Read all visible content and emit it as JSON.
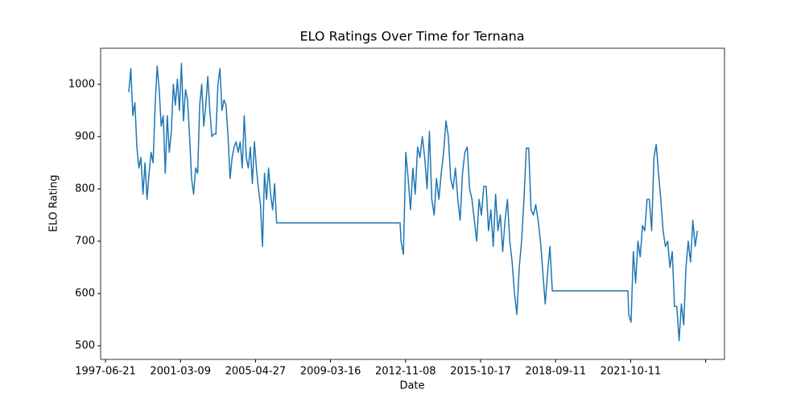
{
  "chart_data": {
    "type": "line",
    "title": "ELO Ratings Over Time for Ternana",
    "xlabel": "Date",
    "ylabel": "ELO Rating",
    "color": "#1f77b4",
    "x": [
      622,
      676,
      730,
      784,
      838,
      892,
      946,
      1000,
      1054,
      1108,
      1162,
      1216,
      1270,
      1324,
      1378,
      1432,
      1486,
      1540,
      1594,
      1648,
      1702,
      1756,
      1810,
      1864,
      1918,
      1972,
      2026,
      2080,
      2134,
      2188,
      2242,
      2296,
      2350,
      2404,
      2458,
      2512,
      2566,
      2620,
      2674,
      2728,
      2782,
      2836,
      2890,
      2944,
      2998,
      3052,
      3106,
      3160,
      3214,
      3268,
      3322,
      3376,
      3430,
      3484,
      3538,
      3592,
      3646,
      3700,
      3754,
      3808,
      3862,
      3916,
      3970,
      4024,
      4078,
      4132,
      4186,
      4240,
      4294,
      4348,
      4402,
      4456,
      4510,
      4564,
      7854,
      7880,
      7943,
      8006,
      8069,
      8132,
      8195,
      8258,
      8321,
      8384,
      8447,
      8510,
      8573,
      8636,
      8699,
      8762,
      8825,
      8888,
      8951,
      9014,
      9077,
      9140,
      9203,
      9266,
      9329,
      9392,
      9455,
      9518,
      9581,
      9644,
      9707,
      9770,
      9833,
      9896,
      9959,
      10022,
      10085,
      10148,
      10211,
      10274,
      10337,
      10400,
      10463,
      10526,
      10589,
      10652,
      10715,
      10778,
      10841,
      10904,
      10967,
      11030,
      11093,
      11156,
      11219,
      11282,
      11345,
      11408,
      11471,
      11534,
      11597,
      11660,
      11723,
      11786,
      11849,
      11912,
      13927,
      13950,
      14011,
      14072,
      14133,
      14194,
      14255,
      14316,
      14377,
      14438,
      14499,
      14560,
      14621,
      14682,
      14743,
      14804,
      14865,
      14926,
      14987,
      15048,
      15109,
      15170,
      15231,
      15292,
      15353,
      15414,
      15475,
      15536,
      15597,
      15658,
      15719,
      15780
    ],
    "values": [
      985,
      1030,
      940,
      965,
      880,
      840,
      860,
      790,
      850,
      780,
      830,
      870,
      850,
      960,
      1035,
      990,
      920,
      940,
      830,
      940,
      870,
      910,
      1000,
      960,
      1010,
      950,
      1040,
      930,
      990,
      970,
      900,
      820,
      790,
      840,
      830,
      960,
      1000,
      920,
      960,
      1015,
      950,
      900,
      905,
      905,
      1000,
      1030,
      950,
      970,
      960,
      900,
      820,
      860,
      880,
      890,
      870,
      890,
      840,
      940,
      860,
      840,
      880,
      810,
      890,
      840,
      800,
      770,
      690,
      830,
      780,
      840,
      790,
      760,
      810,
      735,
      735,
      700,
      675,
      870,
      820,
      760,
      840,
      790,
      880,
      860,
      900,
      860,
      800,
      910,
      780,
      750,
      820,
      780,
      830,
      870,
      930,
      900,
      820,
      800,
      840,
      780,
      740,
      830,
      870,
      880,
      800,
      780,
      740,
      700,
      780,
      750,
      805,
      805,
      720,
      760,
      690,
      790,
      720,
      750,
      680,
      740,
      780,
      700,
      660,
      600,
      560,
      650,
      700,
      780,
      878,
      878,
      760,
      750,
      770,
      740,
      700,
      640,
      580,
      640,
      690,
      605,
      605,
      560,
      545,
      680,
      620,
      700,
      670,
      730,
      720,
      780,
      780,
      720,
      860,
      885,
      830,
      780,
      720,
      690,
      700,
      650,
      680,
      575,
      575,
      510,
      580,
      540,
      650,
      700,
      660,
      740,
      690,
      720
    ],
    "xlim": [
      -129,
      16502
    ],
    "xticks": [
      {
        "value": 0,
        "label": "1997-06-21"
      },
      {
        "value": 2000,
        "label": "2001-03-09"
      },
      {
        "value": 4000,
        "label": "2005-04-27"
      },
      {
        "value": 6000,
        "label": "2009-03-16"
      },
      {
        "value": 8000,
        "label": "2012-11-08"
      },
      {
        "value": 10000,
        "label": "2015-10-17"
      },
      {
        "value": 12000,
        "label": "2018-09-11"
      },
      {
        "value": 14000,
        "label": "2021-10-11"
      },
      {
        "value": 16000,
        "label": null
      }
    ],
    "ylim": [
      474,
      1069
    ],
    "yticks": [
      500,
      600,
      700,
      800,
      900,
      1000
    ]
  }
}
